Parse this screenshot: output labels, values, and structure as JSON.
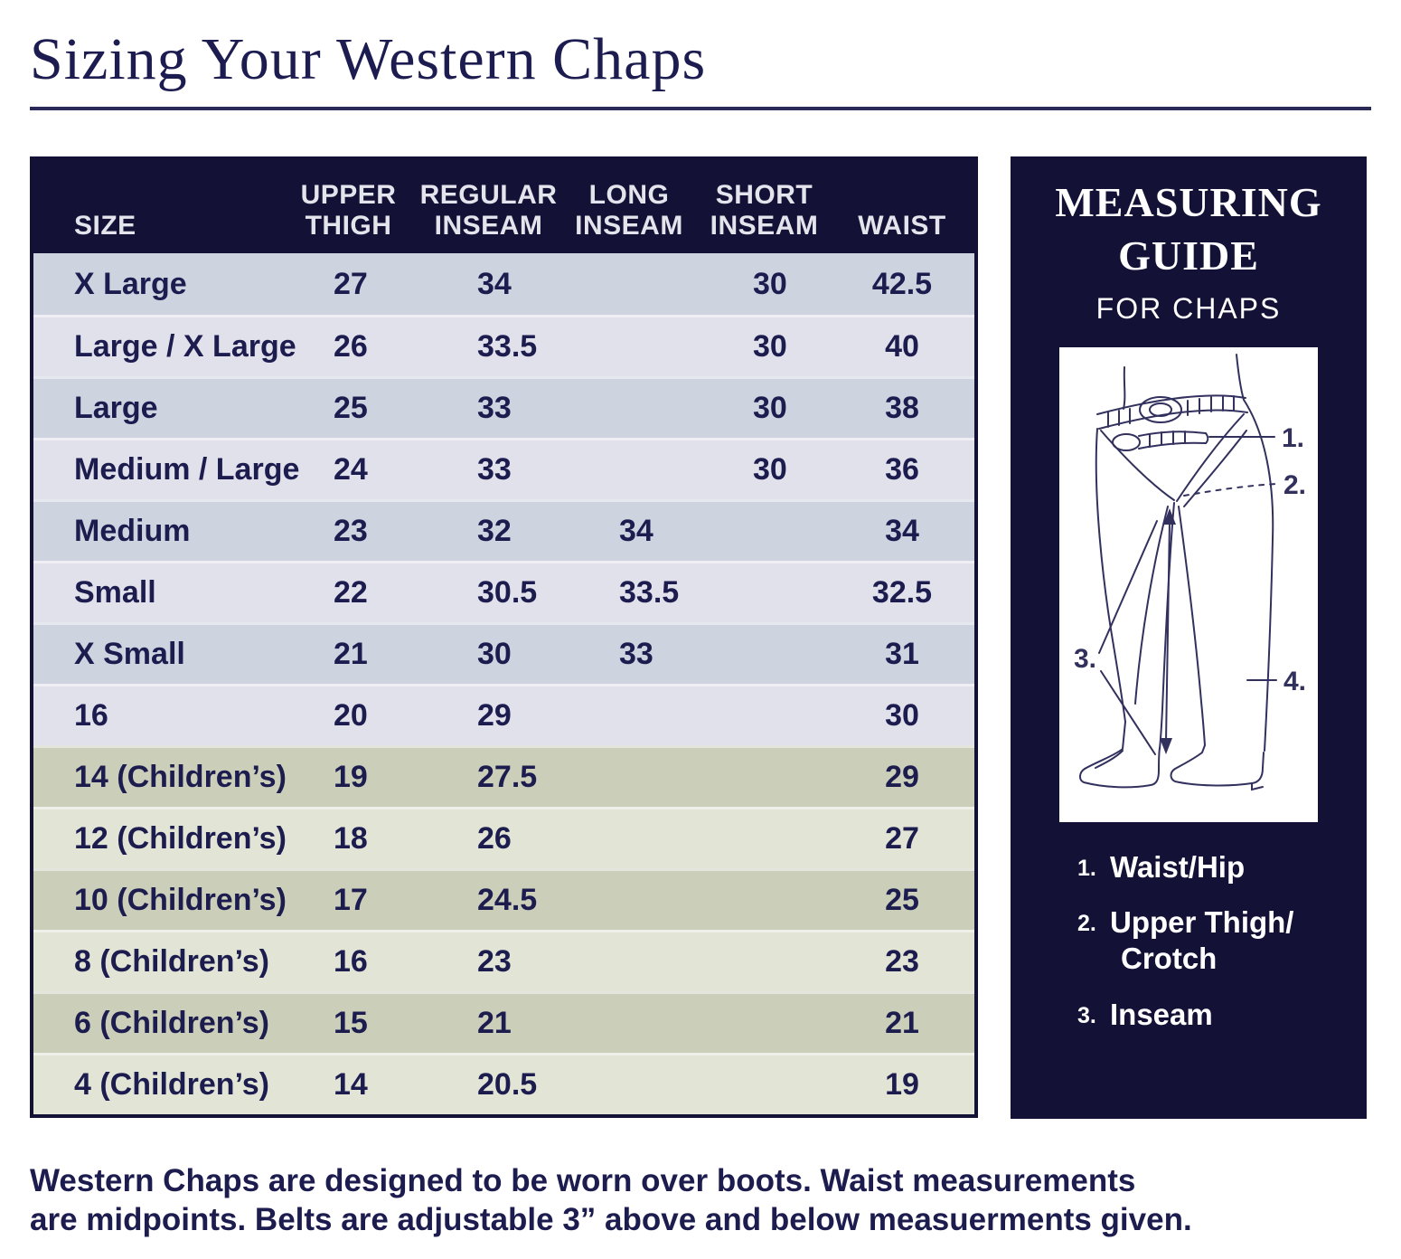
{
  "page": {
    "title": "Sizing Your Western Chaps",
    "footer_line1": "Western Chaps are designed to be worn over boots. Waist measurements",
    "footer_line2": "are midpoints. Belts are adjustable 3” above and below measuerments given."
  },
  "table": {
    "columns": [
      {
        "id": "size",
        "lines": [
          "SIZE"
        ]
      },
      {
        "id": "upper_thigh",
        "lines": [
          "UPPER",
          "THIGH"
        ]
      },
      {
        "id": "regular_inseam",
        "lines": [
          "REGULAR",
          "INSEAM"
        ]
      },
      {
        "id": "long_inseam",
        "lines": [
          "LONG",
          "INSEAM"
        ]
      },
      {
        "id": "short_inseam",
        "lines": [
          "SHORT",
          "INSEAM"
        ]
      },
      {
        "id": "waist",
        "lines": [
          "WAIST"
        ]
      }
    ],
    "rows": [
      {
        "size": "X Large",
        "upper_thigh": "27",
        "regular_inseam": "34",
        "long_inseam": "",
        "short_inseam": "30",
        "waist": "42.5",
        "group": "adult"
      },
      {
        "size": "Large / X Large",
        "upper_thigh": "26",
        "regular_inseam": "33.5",
        "long_inseam": "",
        "short_inseam": "30",
        "waist": "40",
        "group": "adult"
      },
      {
        "size": "Large",
        "upper_thigh": "25",
        "regular_inseam": "33",
        "long_inseam": "",
        "short_inseam": "30",
        "waist": "38",
        "group": "adult"
      },
      {
        "size": "Medium / Large",
        "upper_thigh": "24",
        "regular_inseam": "33",
        "long_inseam": "",
        "short_inseam": "30",
        "waist": "36",
        "group": "adult"
      },
      {
        "size": "Medium",
        "upper_thigh": "23",
        "regular_inseam": "32",
        "long_inseam": "34",
        "short_inseam": "",
        "waist": "34",
        "group": "adult"
      },
      {
        "size": "Small",
        "upper_thigh": "22",
        "regular_inseam": "30.5",
        "long_inseam": "33.5",
        "short_inseam": "",
        "waist": "32.5",
        "group": "adult"
      },
      {
        "size": "X Small",
        "upper_thigh": "21",
        "regular_inseam": "30",
        "long_inseam": "33",
        "short_inseam": "",
        "waist": "31",
        "group": "adult"
      },
      {
        "size": "16",
        "upper_thigh": "20",
        "regular_inseam": "29",
        "long_inseam": "",
        "short_inseam": "",
        "waist": "30",
        "group": "adult"
      },
      {
        "size": "14 (Children’s)",
        "upper_thigh": "19",
        "regular_inseam": "27.5",
        "long_inseam": "",
        "short_inseam": "",
        "waist": "29",
        "group": "child"
      },
      {
        "size": "12 (Children’s)",
        "upper_thigh": "18",
        "regular_inseam": "26",
        "long_inseam": "",
        "short_inseam": "",
        "waist": "27",
        "group": "child"
      },
      {
        "size": "10 (Children’s)",
        "upper_thigh": "17",
        "regular_inseam": "24.5",
        "long_inseam": "",
        "short_inseam": "",
        "waist": "25",
        "group": "child"
      },
      {
        "size": "8 (Children’s)",
        "upper_thigh": "16",
        "regular_inseam": "23",
        "long_inseam": "",
        "short_inseam": "",
        "waist": "23",
        "group": "child"
      },
      {
        "size": "6 (Children’s)",
        "upper_thigh": "15",
        "regular_inseam": "21",
        "long_inseam": "",
        "short_inseam": "",
        "waist": "21",
        "group": "child"
      },
      {
        "size": "4 (Children’s)",
        "upper_thigh": "14",
        "regular_inseam": "20.5",
        "long_inseam": "",
        "short_inseam": "",
        "waist": "19",
        "group": "child"
      }
    ]
  },
  "guide": {
    "title_line1": "MEASURING",
    "title_line2": "GUIDE",
    "subtitle": "FOR CHAPS",
    "callouts": [
      "1.",
      "2.",
      "3.",
      "4."
    ],
    "legend": [
      {
        "num": "1.",
        "lines": [
          "Waist/Hip"
        ]
      },
      {
        "num": "2.",
        "lines": [
          "Upper Thigh/",
          "Crotch"
        ]
      },
      {
        "num": "3.",
        "lines": [
          "Inseam"
        ]
      }
    ]
  },
  "colors": {
    "navy": "#131236",
    "text_navy": "#1d1c4f",
    "row_adult_dark": "#ced3e0",
    "row_adult_light": "#e0e1ea",
    "row_child_dark": "#cbcfba",
    "row_child_light": "#e2e5d6"
  }
}
